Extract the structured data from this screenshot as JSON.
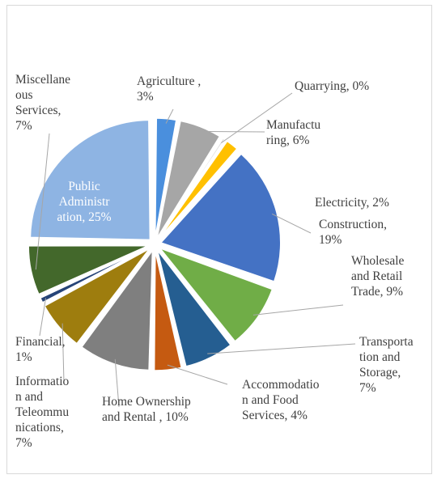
{
  "chart_data": {
    "type": "pie",
    "title": "",
    "slices": [
      {
        "name": "Agriculture",
        "value": 3,
        "display": [
          "Agriculture ,",
          "3%"
        ],
        "color": "#4a8fdd"
      },
      {
        "name": "Manufacturing",
        "value": 6,
        "display": [
          "Manufactu",
          "ring, 6%"
        ],
        "color": "#a6a6a6"
      },
      {
        "name": "Quarrying",
        "value": 0,
        "display": [
          "Quarrying, 0%"
        ],
        "color": "#d9d9d9"
      },
      {
        "name": "Electricity",
        "value": 2,
        "display": [
          "Electricity,  2%"
        ],
        "color": "#ffc000"
      },
      {
        "name": "Construction",
        "value": 19,
        "display": [
          "Construction,",
          "19%"
        ],
        "color": "#4472c4"
      },
      {
        "name": "Wholesale and Retail Trade",
        "value": 9,
        "display": [
          "Wholesale",
          "and Retail",
          "Trade, 9%"
        ],
        "color": "#70ad47"
      },
      {
        "name": "Transportation and Storage",
        "value": 7,
        "display": [
          "Transporta",
          "tion and",
          "Storage,",
          "7%"
        ],
        "color": "#255e91"
      },
      {
        "name": "Accommodation and Food Services",
        "value": 4,
        "display": [
          "Accommodatio",
          "n and Food",
          "Services, 4%"
        ],
        "color": "#c55a11"
      },
      {
        "name": "Home Ownership and Rental",
        "value": 10,
        "display": [
          "Home Ownership",
          "and Rental , 10%"
        ],
        "color": "#7f7f7f"
      },
      {
        "name": "Information and Telecommunications",
        "value": 7,
        "display": [
          "Informatio",
          "n and",
          "Teleommu",
          "nications,",
          "7%"
        ],
        "color": "#9e7d0e"
      },
      {
        "name": "Financial",
        "value": 1,
        "display": [
          "Financial,",
          "1%"
        ],
        "color": "#264478"
      },
      {
        "name": "Miscellaneous Services",
        "value": 7,
        "display": [
          "Miscellane",
          "ous",
          "Services,",
          "7%"
        ],
        "color": "#43682b"
      },
      {
        "name": "Public Administration",
        "value": 25,
        "display": [
          "Public",
          "Administr",
          "ation, 25%"
        ],
        "color": "#8eb4e3"
      }
    ]
  }
}
